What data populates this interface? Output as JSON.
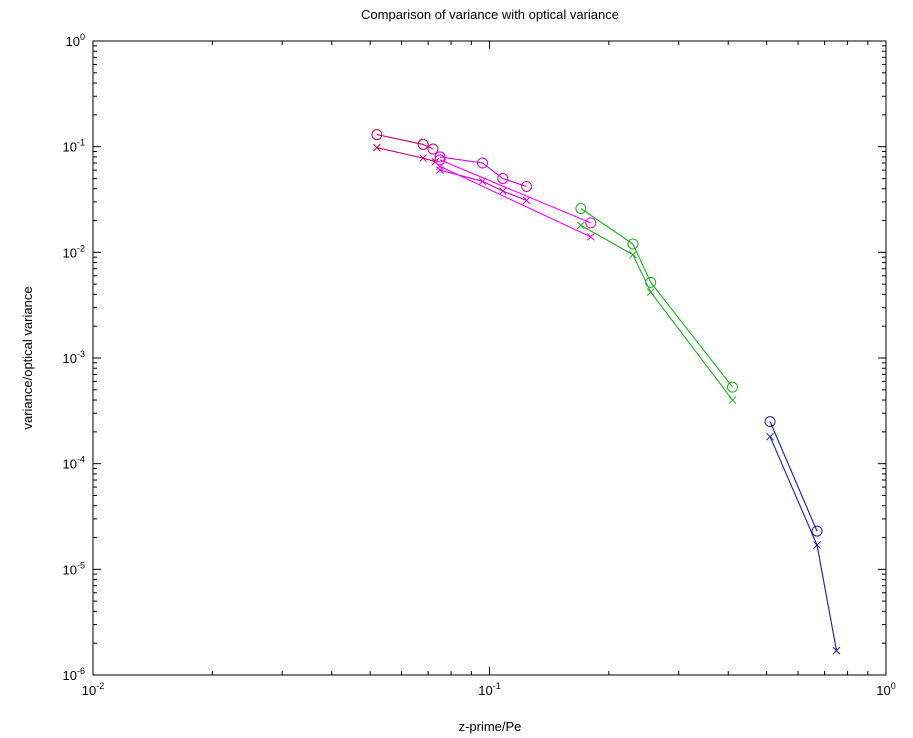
{
  "chart_data": {
    "type": "line",
    "title": "Comparison of variance with optical variance",
    "xlabel": "z-prime/Pe",
    "ylabel": "variance/optical variance",
    "x_scale": "log",
    "y_scale": "log",
    "xlim": [
      0.01,
      1
    ],
    "ylim": [
      1e-06,
      1
    ],
    "grid": false,
    "legend": "none",
    "x_ticks": [
      {
        "base": "10",
        "exp": "-2"
      },
      {
        "base": "10",
        "exp": "-1"
      },
      {
        "base": "10",
        "exp": "0"
      }
    ],
    "y_ticks": [
      {
        "base": "10",
        "exp": "-6"
      },
      {
        "base": "10",
        "exp": "-5"
      },
      {
        "base": "10",
        "exp": "-4"
      },
      {
        "base": "10",
        "exp": "-3"
      },
      {
        "base": "10",
        "exp": "-2"
      },
      {
        "base": "10",
        "exp": "-1"
      },
      {
        "base": "10",
        "exp": "0"
      }
    ],
    "series": [
      {
        "color": "#c0006a",
        "marker": "circle",
        "x": [
          0.052,
          0.068,
          0.072
        ],
        "y": [
          0.13,
          0.105,
          0.095
        ]
      },
      {
        "color": "#c0006a",
        "marker": "x",
        "x": [
          0.052,
          0.068,
          0.073
        ],
        "y": [
          0.098,
          0.078,
          0.072
        ]
      },
      {
        "color": "#cc00cc",
        "marker": "circle",
        "x": [
          0.075,
          0.096,
          0.108,
          0.124
        ],
        "y": [
          0.08,
          0.07,
          0.05,
          0.042
        ]
      },
      {
        "color": "#cc00cc",
        "marker": "x",
        "x": [
          0.075,
          0.096,
          0.108,
          0.124
        ],
        "y": [
          0.06,
          0.047,
          0.038,
          0.031
        ]
      },
      {
        "color": "#ff00ff",
        "marker": "circle",
        "x": [
          0.075,
          0.18
        ],
        "y": [
          0.075,
          0.019
        ]
      },
      {
        "color": "#ff00ff",
        "marker": "x",
        "x": [
          0.075,
          0.18
        ],
        "y": [
          0.065,
          0.014
        ]
      },
      {
        "color": "#20b020",
        "marker": "circle",
        "x": [
          0.17,
          0.23,
          0.255,
          0.41
        ],
        "y": [
          0.026,
          0.012,
          0.0052,
          0.00053
        ]
      },
      {
        "color": "#20b020",
        "marker": "x",
        "x": [
          0.17,
          0.23,
          0.255,
          0.41
        ],
        "y": [
          0.018,
          0.0095,
          0.0042,
          0.0004
        ]
      },
      {
        "color": "#1a1aa0",
        "marker": "circle",
        "x": [
          0.51,
          0.67
        ],
        "y": [
          0.00025,
          2.3e-05
        ]
      },
      {
        "color": "#1a1aa0",
        "marker": "x",
        "x": [
          0.51,
          0.67,
          0.75
        ],
        "y": [
          0.00018,
          1.7e-05,
          1.7e-06
        ]
      }
    ]
  }
}
